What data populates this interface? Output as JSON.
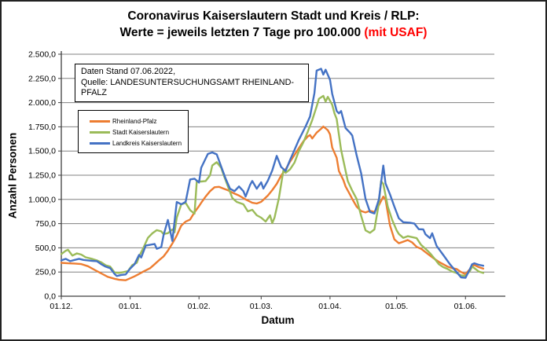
{
  "window": {
    "bg": "#FFFFFF",
    "border_color": "#222222"
  },
  "title": {
    "line1": "Coronavirus Kaiserslautern Stadt und Kreis / RLP:",
    "line2_prefix": "Werte = jeweils letzten 7 Tage pro 100.000 ",
    "line2_highlight": "(mit USAF)",
    "highlight_color": "#FF0000"
  },
  "info_box": {
    "line1": "Daten Stand 07.06.2022,",
    "line2": "Quelle: LANDESUNTERSUCHUNGSAMT RHEINLAND-PFALZ"
  },
  "legend": {
    "items": [
      {
        "label": "Rheinland-Pfalz",
        "color": "#ED7D31"
      },
      {
        "label": "Stadt Kaiserslautern",
        "color": "#9BBB59"
      },
      {
        "label": "Landkreis Kaiserslautern",
        "color": "#4472C4"
      }
    ]
  },
  "chart_data": {
    "type": "line",
    "title": "Coronavirus Kaiserslautern Stadt und Kreis / RLP: Werte = jeweils letzten 7 Tage pro 100.000 (mit USAF)",
    "xlabel": "Datum",
    "ylabel": "Anzahl Personen",
    "ylim": [
      0,
      2500
    ],
    "ytick_step": 250,
    "ytick_labels": [
      "0,0",
      "250,0",
      "500,0",
      "750,0",
      "1.000,0",
      "1.250,0",
      "1.500,0",
      "1.750,0",
      "2.000,0",
      "2.250,0",
      "2.500,0"
    ],
    "xticks": [
      {
        "day": 0,
        "label": "01.12."
      },
      {
        "day": 31,
        "label": "01.01."
      },
      {
        "day": 62,
        "label": "01.02."
      },
      {
        "day": 90,
        "label": "01.03."
      },
      {
        "day": 121,
        "label": "01.04."
      },
      {
        "day": 151,
        "label": "01.05."
      },
      {
        "day": 182,
        "label": "01.06."
      }
    ],
    "x_domain_days": [
      0,
      195
    ],
    "x_start_date": "01.12.2021",
    "data_end_date": "07.06.2022",
    "grid_color": "#808080",
    "axis_color": "#3f3f3f",
    "legend_position": "inside-left",
    "grid": "horizontal-only",
    "series": [
      {
        "name": "Rheinland-Pfalz",
        "color": "#ED7D31",
        "points": [
          [
            0,
            345
          ],
          [
            3,
            340
          ],
          [
            6,
            338
          ],
          [
            9,
            332
          ],
          [
            12,
            310
          ],
          [
            15,
            272
          ],
          [
            18,
            235
          ],
          [
            21,
            200
          ],
          [
            24,
            180
          ],
          [
            26,
            170
          ],
          [
            29,
            165
          ],
          [
            31,
            185
          ],
          [
            33,
            205
          ],
          [
            35,
            230
          ],
          [
            37,
            255
          ],
          [
            40,
            290
          ],
          [
            42,
            330
          ],
          [
            44,
            372
          ],
          [
            46,
            410
          ],
          [
            48,
            470
          ],
          [
            50,
            545
          ],
          [
            52,
            627
          ],
          [
            54,
            730
          ],
          [
            56,
            770
          ],
          [
            58,
            792
          ],
          [
            60,
            868
          ],
          [
            62,
            930
          ],
          [
            63,
            965
          ],
          [
            65,
            1030
          ],
          [
            67,
            1085
          ],
          [
            69,
            1126
          ],
          [
            71,
            1130
          ],
          [
            73,
            1112
          ],
          [
            75,
            1095
          ],
          [
            77,
            1071
          ],
          [
            80,
            1040
          ],
          [
            83,
            1000
          ],
          [
            86,
            965
          ],
          [
            88,
            958
          ],
          [
            90,
            975
          ],
          [
            93,
            1040
          ],
          [
            95,
            1096
          ],
          [
            97,
            1161
          ],
          [
            99,
            1246
          ],
          [
            101,
            1310
          ],
          [
            103,
            1390
          ],
          [
            105,
            1460
          ],
          [
            107,
            1530
          ],
          [
            109,
            1600
          ],
          [
            111,
            1650
          ],
          [
            112,
            1665
          ],
          [
            113,
            1630
          ],
          [
            115,
            1690
          ],
          [
            117,
            1730
          ],
          [
            118,
            1753
          ],
          [
            120,
            1715
          ],
          [
            121,
            1672
          ],
          [
            122,
            1536
          ],
          [
            124,
            1430
          ],
          [
            125,
            1294
          ],
          [
            127,
            1200
          ],
          [
            128,
            1134
          ],
          [
            130,
            1050
          ],
          [
            131,
            1005
          ],
          [
            133,
            925
          ],
          [
            135,
            880
          ],
          [
            137,
            865
          ],
          [
            139,
            882
          ],
          [
            141,
            870
          ],
          [
            143,
            940
          ],
          [
            145,
            1029
          ],
          [
            146,
            1000
          ],
          [
            148,
            732
          ],
          [
            150,
            587
          ],
          [
            152,
            547
          ],
          [
            154,
            563
          ],
          [
            156,
            580
          ],
          [
            158,
            555
          ],
          [
            160,
            510
          ],
          [
            162,
            490
          ],
          [
            164,
            455
          ],
          [
            166,
            420
          ],
          [
            168,
            386
          ],
          [
            170,
            355
          ],
          [
            172,
            330
          ],
          [
            174,
            305
          ],
          [
            176,
            290
          ],
          [
            178,
            281
          ],
          [
            180,
            250
          ],
          [
            182,
            228
          ],
          [
            184,
            280
          ],
          [
            185,
            310
          ],
          [
            186,
            322
          ],
          [
            188,
            300
          ],
          [
            190,
            285
          ]
        ]
      },
      {
        "name": "Stadt Kaiserslautern",
        "color": "#9BBB59",
        "points": [
          [
            0,
            435
          ],
          [
            2,
            470
          ],
          [
            3,
            480
          ],
          [
            5,
            420
          ],
          [
            7,
            442
          ],
          [
            9,
            430
          ],
          [
            11,
            402
          ],
          [
            14,
            385
          ],
          [
            16,
            370
          ],
          [
            18,
            350
          ],
          [
            20,
            320
          ],
          [
            22,
            306
          ],
          [
            24,
            245
          ],
          [
            26,
            241
          ],
          [
            28,
            249
          ],
          [
            30,
            260
          ],
          [
            32,
            322
          ],
          [
            34,
            346
          ],
          [
            35,
            410
          ],
          [
            37,
            500
          ],
          [
            39,
            603
          ],
          [
            41,
            650
          ],
          [
            43,
            683
          ],
          [
            45,
            670
          ],
          [
            46,
            643
          ],
          [
            48,
            651
          ],
          [
            50,
            690
          ],
          [
            51,
            660
          ],
          [
            52,
            812
          ],
          [
            54,
            949
          ],
          [
            56,
            965
          ],
          [
            58,
            890
          ],
          [
            60,
            852
          ],
          [
            61,
            1190
          ],
          [
            63,
            1185
          ],
          [
            65,
            1190
          ],
          [
            67,
            1250
          ],
          [
            68,
            1351
          ],
          [
            70,
            1385
          ],
          [
            72,
            1327
          ],
          [
            73,
            1258
          ],
          [
            75,
            1136
          ],
          [
            77,
            1015
          ],
          [
            79,
            974
          ],
          [
            82,
            950
          ],
          [
            84,
            877
          ],
          [
            86,
            893
          ],
          [
            88,
            836
          ],
          [
            90,
            812
          ],
          [
            92,
            771
          ],
          [
            94,
            836
          ],
          [
            95,
            755
          ],
          [
            96,
            812
          ],
          [
            98,
            1015
          ],
          [
            100,
            1300
          ],
          [
            101,
            1274
          ],
          [
            103,
            1310
          ],
          [
            105,
            1380
          ],
          [
            107,
            1500
          ],
          [
            109,
            1590
          ],
          [
            111,
            1700
          ],
          [
            113,
            1820
          ],
          [
            115,
            1960
          ],
          [
            116,
            2040
          ],
          [
            118,
            2070
          ],
          [
            119,
            2010
          ],
          [
            120,
            2060
          ],
          [
            122,
            1978
          ],
          [
            123,
            1889
          ],
          [
            124,
            1830
          ],
          [
            126,
            1511
          ],
          [
            129,
            1190
          ],
          [
            131,
            1090
          ],
          [
            133,
            1005
          ],
          [
            135,
            830
          ],
          [
            137,
            680
          ],
          [
            139,
            655
          ],
          [
            141,
            690
          ],
          [
            143,
            960
          ],
          [
            144,
            1190
          ],
          [
            145,
            1160
          ],
          [
            147,
            925
          ],
          [
            149,
            788
          ],
          [
            151,
            680
          ],
          [
            152,
            643
          ],
          [
            154,
            603
          ],
          [
            156,
            620
          ],
          [
            158,
            610
          ],
          [
            160,
            600
          ],
          [
            162,
            530
          ],
          [
            164,
            490
          ],
          [
            166,
            445
          ],
          [
            168,
            390
          ],
          [
            170,
            330
          ],
          [
            172,
            300
          ],
          [
            174,
            281
          ],
          [
            176,
            255
          ],
          [
            178,
            240
          ],
          [
            180,
            215
          ],
          [
            182,
            210
          ],
          [
            184,
            260
          ],
          [
            185,
            306
          ],
          [
            186,
            290
          ],
          [
            188,
            255
          ],
          [
            190,
            240
          ]
        ]
      },
      {
        "name": "Landkreis Kaiserslautern",
        "color": "#4472C4",
        "points": [
          [
            0,
            370
          ],
          [
            2,
            386
          ],
          [
            4,
            362
          ],
          [
            6,
            375
          ],
          [
            8,
            386
          ],
          [
            10,
            375
          ],
          [
            12,
            370
          ],
          [
            14,
            365
          ],
          [
            16,
            362
          ],
          [
            18,
            330
          ],
          [
            20,
            305
          ],
          [
            22,
            290
          ],
          [
            24,
            230
          ],
          [
            25,
            209
          ],
          [
            27,
            220
          ],
          [
            29,
            225
          ],
          [
            31,
            285
          ],
          [
            33,
            330
          ],
          [
            35,
            426
          ],
          [
            36,
            400
          ],
          [
            38,
            523
          ],
          [
            40,
            531
          ],
          [
            42,
            540
          ],
          [
            43,
            490
          ],
          [
            45,
            507
          ],
          [
            46,
            627
          ],
          [
            48,
            788
          ],
          [
            50,
            571
          ],
          [
            52,
            973
          ],
          [
            54,
            950
          ],
          [
            56,
            975
          ],
          [
            58,
            1206
          ],
          [
            60,
            1214
          ],
          [
            62,
            1174
          ],
          [
            63,
            1327
          ],
          [
            66,
            1470
          ],
          [
            68,
            1485
          ],
          [
            70,
            1465
          ],
          [
            72,
            1340
          ],
          [
            74,
            1214
          ],
          [
            76,
            1110
          ],
          [
            78,
            1085
          ],
          [
            80,
            1134
          ],
          [
            82,
            1085
          ],
          [
            83,
            1029
          ],
          [
            85,
            1150
          ],
          [
            86,
            1190
          ],
          [
            88,
            1110
          ],
          [
            90,
            1177
          ],
          [
            91,
            1112
          ],
          [
            93,
            1193
          ],
          [
            95,
            1299
          ],
          [
            97,
            1450
          ],
          [
            99,
            1335
          ],
          [
            101,
            1294
          ],
          [
            103,
            1407
          ],
          [
            105,
            1511
          ],
          [
            107,
            1616
          ],
          [
            110,
            1753
          ],
          [
            112,
            1857
          ],
          [
            114,
            2100
          ],
          [
            115,
            2330
          ],
          [
            117,
            2350
          ],
          [
            118,
            2290
          ],
          [
            119,
            2340
          ],
          [
            121,
            2235
          ],
          [
            122,
            2090
          ],
          [
            124,
            1913
          ],
          [
            125,
            1889
          ],
          [
            126,
            1913
          ],
          [
            128,
            1737
          ],
          [
            130,
            1690
          ],
          [
            131,
            1660
          ],
          [
            133,
            1455
          ],
          [
            135,
            1270
          ],
          [
            137,
            1005
          ],
          [
            139,
            870
          ],
          [
            141,
            855
          ],
          [
            143,
            1000
          ],
          [
            145,
            1350
          ],
          [
            146,
            1166
          ],
          [
            148,
            1053
          ],
          [
            150,
            925
          ],
          [
            152,
            804
          ],
          [
            154,
            765
          ],
          [
            157,
            760
          ],
          [
            159,
            750
          ],
          [
            161,
            692
          ],
          [
            163,
            690
          ],
          [
            164,
            640
          ],
          [
            166,
            600
          ],
          [
            167,
            650
          ],
          [
            169,
            520
          ],
          [
            172,
            426
          ],
          [
            175,
            330
          ],
          [
            178,
            249
          ],
          [
            180,
            195
          ],
          [
            182,
            190
          ],
          [
            184,
            280
          ],
          [
            185,
            330
          ],
          [
            186,
            340
          ],
          [
            188,
            325
          ],
          [
            190,
            315
          ]
        ]
      }
    ]
  }
}
